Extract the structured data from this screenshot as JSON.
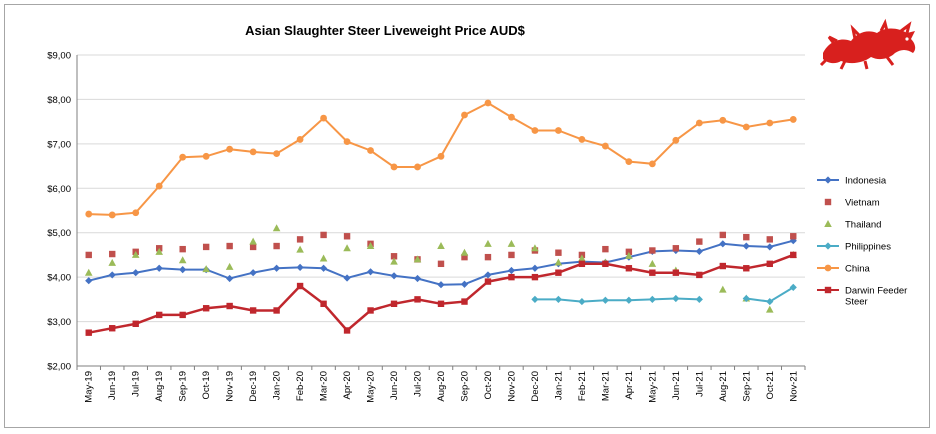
{
  "chart_data": {
    "type": "line",
    "title": "Asian Slaughter Steer Liveweight Price AUD$",
    "xlabel": "",
    "ylabel": "",
    "ylim": [
      2,
      9
    ],
    "y_ticks": [
      "$2,00",
      "$3,00",
      "$4,00",
      "$5,00",
      "$6,00",
      "$7,00",
      "$8,00",
      "$9,00"
    ],
    "grid": "horizontal",
    "legend_position": "right",
    "categories": [
      "May-19",
      "Jun-19",
      "Jul-19",
      "Aug-19",
      "Sep-19",
      "Oct-19",
      "Nov-19",
      "Dec-19",
      "Jan-20",
      "Feb-20",
      "Mar-20",
      "Apr-20",
      "May-20",
      "Jun-20",
      "Jul-20",
      "Aug-20",
      "Sep-20",
      "Oct-20",
      "Nov-20",
      "Dec-20",
      "Jan-21",
      "Feb-21",
      "Mar-21",
      "Apr-21",
      "May-21",
      "Jun-21",
      "Jul-21",
      "Aug-21",
      "Sep-21",
      "Oct-21",
      "Nov-21"
    ],
    "series": [
      {
        "name": "Indonesia",
        "color": "#4472c4",
        "style": "line-diamond",
        "values": [
          3.92,
          4.05,
          4.1,
          4.2,
          4.17,
          4.17,
          3.97,
          4.1,
          4.2,
          4.22,
          4.2,
          3.98,
          4.12,
          4.03,
          3.97,
          3.83,
          3.84,
          4.05,
          4.15,
          4.2,
          4.3,
          4.35,
          4.33,
          4.45,
          4.58,
          4.6,
          4.58,
          4.75,
          4.7,
          4.68,
          4.82
        ]
      },
      {
        "name": "Vietnam",
        "color": "#c0504d",
        "style": "square",
        "values": [
          4.5,
          4.52,
          4.57,
          4.65,
          4.63,
          4.68,
          4.7,
          4.68,
          4.7,
          4.85,
          4.95,
          4.92,
          4.75,
          4.47,
          4.4,
          4.3,
          4.45,
          4.45,
          4.5,
          4.6,
          4.55,
          4.5,
          4.63,
          4.57,
          4.6,
          4.65,
          4.8,
          4.95,
          4.9,
          4.85,
          4.92
        ]
      },
      {
        "name": "Thailand",
        "color": "#9bbb59",
        "style": "triangle",
        "values": [
          4.1,
          4.32,
          4.5,
          4.57,
          4.38,
          4.18,
          4.23,
          4.8,
          5.1,
          4.62,
          4.42,
          4.65,
          4.7,
          4.35,
          4.4,
          4.7,
          4.55,
          4.75,
          4.75,
          4.65,
          4.33,
          4.42,
          4.33,
          4.48,
          4.3,
          4.15,
          null,
          3.72,
          3.52,
          3.27,
          4.5
        ]
      },
      {
        "name": "Philippines",
        "color": "#4bacc6",
        "style": "line-diamond",
        "values": [
          null,
          null,
          null,
          null,
          null,
          null,
          null,
          null,
          null,
          null,
          null,
          null,
          null,
          null,
          null,
          null,
          null,
          null,
          null,
          3.5,
          3.5,
          3.45,
          3.48,
          3.48,
          3.5,
          3.52,
          3.5,
          null,
          3.52,
          3.45,
          3.77
        ]
      },
      {
        "name": "China",
        "color": "#f79646",
        "style": "line-circle",
        "values": [
          5.42,
          5.4,
          5.45,
          6.05,
          6.7,
          6.72,
          6.88,
          6.82,
          6.78,
          7.1,
          7.58,
          7.05,
          6.85,
          6.48,
          6.48,
          6.72,
          7.65,
          7.92,
          7.6,
          7.3,
          7.3,
          7.1,
          6.95,
          6.6,
          6.55,
          7.08,
          7.47,
          7.53,
          7.38,
          7.47,
          7.55
        ]
      },
      {
        "name": "Darwin Feeder Steer",
        "color": "#c0272d",
        "style": "line-square",
        "values": [
          2.75,
          2.85,
          2.95,
          3.15,
          3.15,
          3.3,
          3.35,
          3.25,
          3.25,
          3.8,
          3.4,
          2.8,
          3.25,
          3.4,
          3.5,
          3.4,
          3.45,
          3.9,
          4.0,
          4.0,
          4.1,
          4.3,
          4.3,
          4.2,
          4.1,
          4.1,
          4.05,
          4.25,
          4.2,
          4.3,
          4.5
        ]
      }
    ]
  }
}
